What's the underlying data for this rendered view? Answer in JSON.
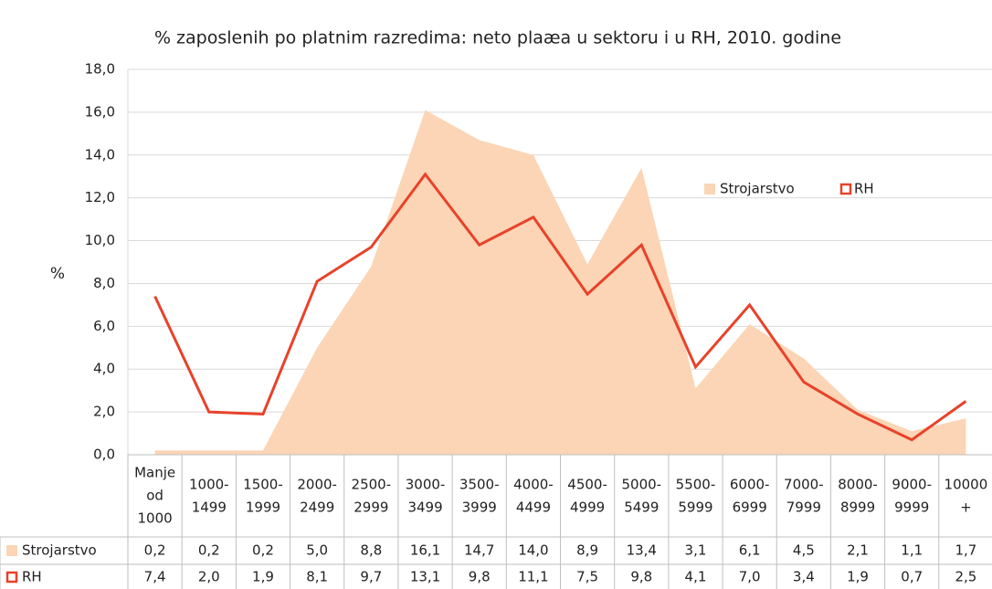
{
  "chart_data": {
    "type": "area-line",
    "title": "% zaposlenih po platnim razredima: neto plaæa u sektoru i u RH, 2010. godine",
    "y_label": "%",
    "categories": [
      [
        "Manje",
        "od",
        "1000"
      ],
      [
        "1000-",
        "1499"
      ],
      [
        "1500-",
        "1999"
      ],
      [
        "2000-",
        "2499"
      ],
      [
        "2500-",
        "2999"
      ],
      [
        "3000-",
        "3499"
      ],
      [
        "3500-",
        "3999"
      ],
      [
        "4000-",
        "4499"
      ],
      [
        "4500-",
        "4999"
      ],
      [
        "5000-",
        "5499"
      ],
      [
        "5500-",
        "5999"
      ],
      [
        "6000-",
        "6999"
      ],
      [
        "7000-",
        "7999"
      ],
      [
        "8000-",
        "8999"
      ],
      [
        "9000-",
        "9999"
      ],
      [
        "10000",
        "+"
      ]
    ],
    "series": [
      {
        "name": "Strojarstvo",
        "kind": "area",
        "color": "#fbd5b5",
        "values": [
          0.2,
          0.2,
          0.2,
          5.0,
          8.8,
          16.1,
          14.7,
          14.0,
          8.9,
          13.4,
          3.1,
          6.1,
          4.5,
          2.1,
          1.1,
          1.7
        ],
        "value_labels": [
          "0,2",
          "0,2",
          "0,2",
          "5,0",
          "8,8",
          "16,1",
          "14,7",
          "14,0",
          "8,9",
          "13,4",
          "3,1",
          "6,1",
          "4,5",
          "2,1",
          "1,1",
          "1,7"
        ]
      },
      {
        "name": "RH",
        "kind": "line",
        "color": "#e8422a",
        "values": [
          7.4,
          2.0,
          1.9,
          8.1,
          9.7,
          13.1,
          9.8,
          11.1,
          7.5,
          9.8,
          4.1,
          7.0,
          3.4,
          1.9,
          0.7,
          2.5
        ],
        "value_labels": [
          "7,4",
          "2,0",
          "1,9",
          "8,1",
          "9,7",
          "13,1",
          "9,8",
          "11,1",
          "7,5",
          "9,8",
          "4,1",
          "7,0",
          "3,4",
          "1,9",
          "0,7",
          "2,5"
        ]
      }
    ],
    "ylim": [
      0,
      18
    ],
    "yticks": [
      {
        "value": 0,
        "label": "0,0"
      },
      {
        "value": 2,
        "label": "2,0"
      },
      {
        "value": 4,
        "label": "4,0"
      },
      {
        "value": 6,
        "label": "6,0"
      },
      {
        "value": 8,
        "label": "8,0"
      },
      {
        "value": 10,
        "label": "10,0"
      },
      {
        "value": 12,
        "label": "12,0"
      },
      {
        "value": 14,
        "label": "14,0"
      },
      {
        "value": 16,
        "label": "16,0"
      },
      {
        "value": 18,
        "label": "18,0"
      }
    ],
    "grid": true,
    "legend": "upper right"
  }
}
